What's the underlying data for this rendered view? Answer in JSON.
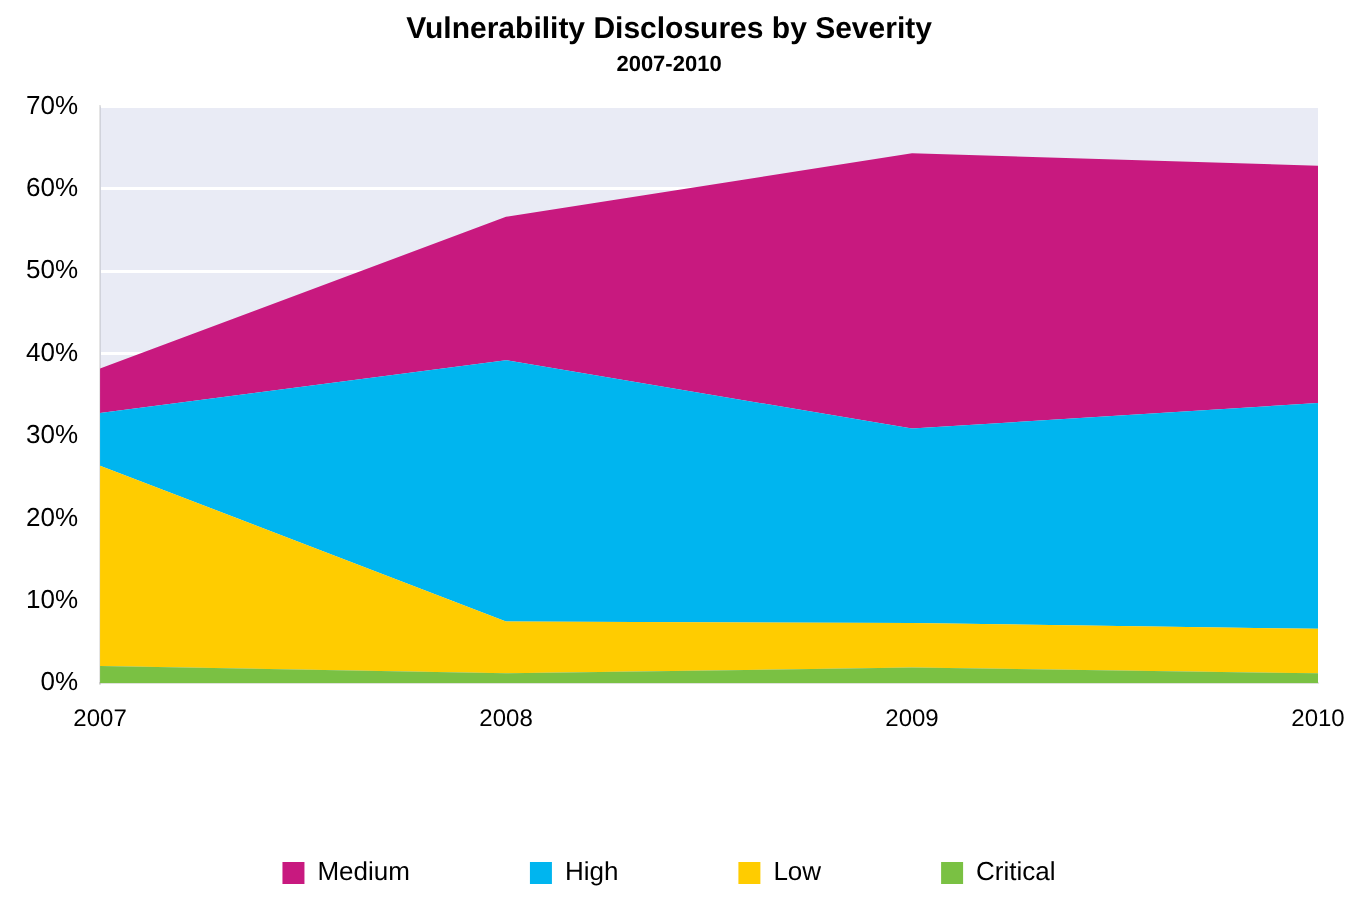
{
  "chart_data": {
    "type": "area",
    "title": "Vulnerability Disclosures by Severity",
    "subtitle": "2007-2010",
    "categories": [
      "2007",
      "2008",
      "2009",
      "2010"
    ],
    "stacked": true,
    "series": [
      {
        "name": "Critical",
        "color": "#7ac143",
        "values": [
          2.1,
          1.2,
          1.9,
          1.2
        ]
      },
      {
        "name": "Low",
        "color": "#ffcc00",
        "values": [
          24.3,
          6.3,
          5.4,
          5.4
        ]
      },
      {
        "name": "High",
        "color": "#00b5ef",
        "values": [
          6.4,
          31.7,
          23.6,
          27.4
        ]
      },
      {
        "name": "Medium",
        "color": "#c8197f",
        "values": [
          5.4,
          17.4,
          33.4,
          28.8
        ]
      }
    ],
    "ylim": [
      0,
      70
    ],
    "yticks": [
      {
        "value": 0,
        "label": "0%"
      },
      {
        "value": 10,
        "label": "10%"
      },
      {
        "value": 20,
        "label": "20%"
      },
      {
        "value": 30,
        "label": "30%"
      },
      {
        "value": 40,
        "label": "40%"
      },
      {
        "value": 50,
        "label": "50%"
      },
      {
        "value": 60,
        "label": "60%"
      },
      {
        "value": 70,
        "label": "70%"
      }
    ],
    "grid": "y",
    "legend": "bottom",
    "marker": "none"
  }
}
